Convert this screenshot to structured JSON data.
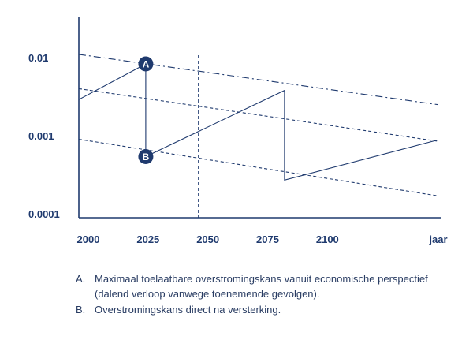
{
  "chart_data": {
    "type": "line",
    "y_scale": "log",
    "xlim": [
      2000,
      2150
    ],
    "ylim": [
      0.0001,
      0.03
    ],
    "x_ticks": [
      {
        "value": 2000,
        "label": "2000"
      },
      {
        "value": 2025,
        "label": "2025"
      },
      {
        "value": 2050,
        "label": "2050"
      },
      {
        "value": 2075,
        "label": "2075"
      },
      {
        "value": 2100,
        "label": "2100"
      },
      {
        "value": 2147,
        "label": "jaar"
      }
    ],
    "y_ticks": [
      {
        "value": 0.01,
        "label": "0.01"
      },
      {
        "value": 0.001,
        "label": "0.001"
      },
      {
        "value": 0.0001,
        "label": "0.0001"
      }
    ],
    "reference_year": 2050,
    "series": [
      {
        "style": "dash-dot",
        "x": [
          2000,
          2150
        ],
        "y": [
          0.011,
          0.0025
        ]
      },
      {
        "style": "dashed",
        "x": [
          2000,
          2150
        ],
        "y": [
          0.004,
          0.00085
        ]
      },
      {
        "style": "dashed",
        "x": [
          2000,
          2150
        ],
        "y": [
          0.0009,
          0.00017
        ]
      },
      {
        "style": "solid",
        "x": [
          2000,
          2028,
          2028,
          2086,
          2086,
          2150
        ],
        "y": [
          0.0029,
          0.0083,
          0.00054,
          0.0038,
          0.00027,
          0.00088
        ]
      }
    ],
    "markers": [
      {
        "label": "A",
        "x": 2028,
        "y": 0.0083
      },
      {
        "label": "B",
        "x": 2028,
        "y": 0.00054
      }
    ],
    "colors": {
      "ink": "#1f3a6e",
      "marker_fill": "#1f3a6e",
      "marker_text": "#ffffff"
    }
  },
  "notes": [
    {
      "marker": "A.",
      "text": "Maximaal toelaatbare overstromingskans vanuit economische perspectief (dalend verloop vanwege toenemende gevolgen)."
    },
    {
      "marker": "B.",
      "text": "Overstromingskans direct na versterking."
    }
  ]
}
